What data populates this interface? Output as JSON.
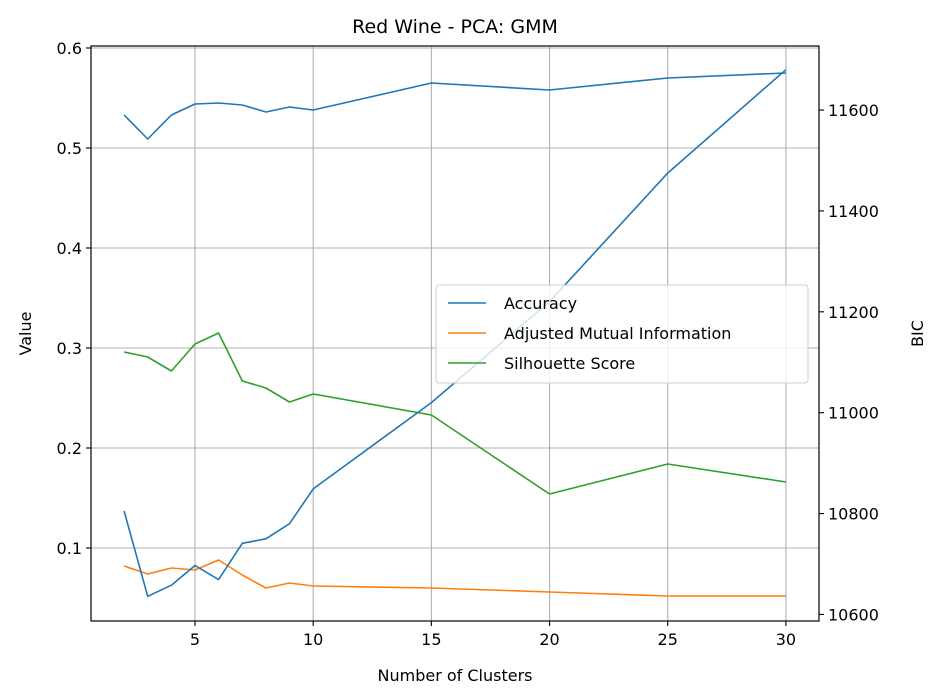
{
  "chart_data": {
    "type": "line",
    "title": "Red Wine - PCA: GMM",
    "xlabel": "Number of Clusters",
    "ylabel": "Value",
    "ylabel_right": "BIC",
    "xlim": [
      0.6,
      31.4
    ],
    "ylim": [
      0.027,
      0.602
    ],
    "ylim_right": [
      10587,
      11727
    ],
    "x_ticks": [
      5,
      10,
      15,
      20,
      25,
      30
    ],
    "y_ticks": [
      0.1,
      0.2,
      0.3,
      0.4,
      0.5,
      0.6
    ],
    "y_ticks_right": [
      10600,
      10800,
      11000,
      11200,
      11400,
      11600
    ],
    "grid": true,
    "legend_position": "center-right",
    "series": [
      {
        "name": "Accuracy",
        "color": "#1f77b4",
        "axis": "left",
        "x": [
          2,
          3,
          4,
          5,
          6,
          7,
          8,
          9,
          10,
          15,
          20,
          25,
          30
        ],
        "values": [
          0.533,
          0.509,
          0.533,
          0.544,
          0.545,
          0.543,
          0.536,
          0.541,
          0.538,
          0.565,
          0.558,
          0.57,
          0.575
        ]
      },
      {
        "name": "Adjusted Mutual Information",
        "color": "#ff7f0e",
        "axis": "left",
        "x": [
          2,
          3,
          4,
          5,
          6,
          7,
          8,
          9,
          10,
          15,
          20,
          25,
          30
        ],
        "values": [
          0.082,
          0.074,
          0.08,
          0.078,
          0.088,
          0.073,
          0.06,
          0.065,
          0.062,
          0.06,
          0.056,
          0.052,
          0.052
        ]
      },
      {
        "name": "Silhouette Score",
        "color": "#2ca02c",
        "axis": "left",
        "x": [
          2,
          3,
          4,
          5,
          6,
          7,
          8,
          9,
          10,
          15,
          20,
          25,
          30
        ],
        "values": [
          0.296,
          0.291,
          0.277,
          0.304,
          0.315,
          0.267,
          0.26,
          0.246,
          0.254,
          0.233,
          0.154,
          0.184,
          0.166
        ]
      },
      {
        "color": "#1f77b4",
        "axis": "right",
        "x": [
          2,
          3,
          4,
          5,
          6,
          7,
          8,
          9,
          10,
          15,
          20,
          25,
          30
        ],
        "values": [
          10805,
          10636,
          10658,
          10697,
          10669,
          10741,
          10750,
          10780,
          10849,
          11020,
          11220,
          11475,
          11680
        ]
      }
    ]
  }
}
